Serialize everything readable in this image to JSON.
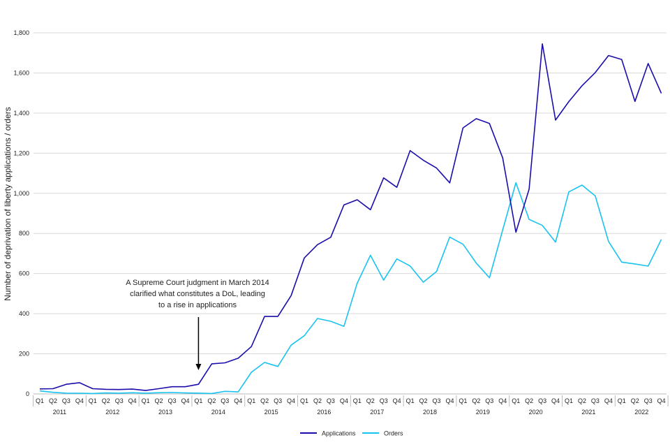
{
  "chart_data": {
    "type": "line",
    "ylabel": "Number of deprivation of liberty applications / orders",
    "xlabel": "",
    "title": "",
    "ylim": [
      0,
      1800
    ],
    "yticks": [
      "0",
      "200",
      "400",
      "600",
      "800",
      "1,000",
      "1,200",
      "1,400",
      "1,600",
      "1,800"
    ],
    "ytick_values": [
      0,
      200,
      400,
      600,
      800,
      1000,
      1200,
      1400,
      1600,
      1800
    ],
    "quarters": [
      "Q1",
      "Q2",
      "Q3",
      "Q4"
    ],
    "years": [
      "2011",
      "2012",
      "2013",
      "2014",
      "2015",
      "2016",
      "2017",
      "2018",
      "2019",
      "2020",
      "2021",
      "2022"
    ],
    "grid": "horizontal",
    "legend_position": "bottom-center",
    "series": [
      {
        "name": "Applications",
        "color": "#1a0dab",
        "values": [
          25,
          26,
          48,
          56,
          26,
          23,
          22,
          24,
          17,
          26,
          36,
          36,
          48,
          150,
          155,
          178,
          236,
          386,
          386,
          490,
          678,
          744,
          781,
          942,
          968,
          918,
          1077,
          1030,
          1213,
          1165,
          1126,
          1052,
          1326,
          1372,
          1348,
          1176,
          806,
          1020,
          1745,
          1365,
          1457,
          1536,
          1602,
          1687,
          1667,
          1458,
          1647,
          1498
        ]
      },
      {
        "name": "Orders",
        "color": "#19c3f0",
        "values": [
          15,
          8,
          4,
          3,
          2,
          5,
          4,
          6,
          4,
          6,
          7,
          5,
          4,
          2,
          13,
          10,
          108,
          157,
          137,
          243,
          290,
          376,
          362,
          337,
          552,
          691,
          567,
          673,
          638,
          557,
          610,
          782,
          746,
          652,
          579,
          818,
          1053,
          870,
          840,
          757,
          1007,
          1041,
          987,
          760,
          657,
          648,
          637,
          770
        ]
      }
    ],
    "annotation": {
      "lines": [
        "A Supreme Court judgment in March 2014",
        "clarified what constitutes a DoL, leading",
        "to a rise in applications"
      ],
      "target_index": 12
    }
  }
}
